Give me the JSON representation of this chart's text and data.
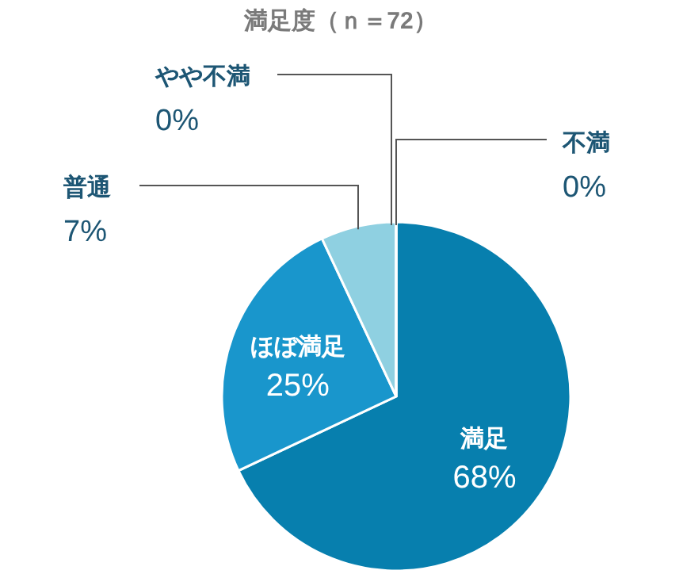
{
  "chart_data": {
    "type": "pie",
    "title": "満足度（ｎ＝72）",
    "categories": [
      "満足",
      "ほぼ満足",
      "普通",
      "やや不満",
      "不満"
    ],
    "values": [
      68,
      25,
      7,
      0,
      0
    ],
    "value_labels": [
      "68%",
      "25%",
      "7%",
      "0%",
      "0%"
    ],
    "colors": [
      "#077fae",
      "#1996cc",
      "#8fd0e1",
      "#b5e1ec",
      "#d0ecf3"
    ]
  }
}
